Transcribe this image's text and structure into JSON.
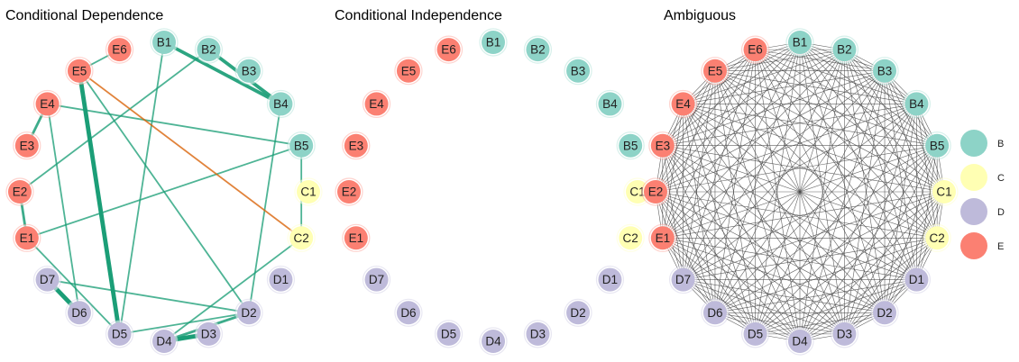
{
  "chart_data": [
    {
      "type": "network",
      "title": "Conditional Dependence",
      "edges": [
        {
          "from": "B1",
          "to": "B4",
          "weight": 3,
          "sign": "positive"
        },
        {
          "from": "B2",
          "to": "B4",
          "weight": 3,
          "sign": "positive"
        },
        {
          "from": "B2",
          "to": "E2",
          "weight": 1,
          "sign": "positive"
        },
        {
          "from": "B1",
          "to": "D5",
          "weight": 1,
          "sign": "positive"
        },
        {
          "from": "B4",
          "to": "D2",
          "weight": 1,
          "sign": "positive"
        },
        {
          "from": "B5",
          "to": "C2",
          "weight": 1,
          "sign": "positive"
        },
        {
          "from": "B5",
          "to": "E4",
          "weight": 1,
          "sign": "positive"
        },
        {
          "from": "B5",
          "to": "E1",
          "weight": 1,
          "sign": "positive"
        },
        {
          "from": "E5",
          "to": "C2",
          "weight": 1,
          "sign": "negative"
        },
        {
          "from": "E5",
          "to": "D5",
          "weight": 4,
          "sign": "positive"
        },
        {
          "from": "E5",
          "to": "D2",
          "weight": 1,
          "sign": "positive"
        },
        {
          "from": "E5",
          "to": "E6",
          "weight": 1,
          "sign": "positive"
        },
        {
          "from": "E4",
          "to": "E3",
          "weight": 2,
          "sign": "positive"
        },
        {
          "from": "E4",
          "to": "D6",
          "weight": 1,
          "sign": "positive"
        },
        {
          "from": "E2",
          "to": "E1",
          "weight": 2,
          "sign": "positive"
        },
        {
          "from": "E1",
          "to": "D5",
          "weight": 1,
          "sign": "positive"
        },
        {
          "from": "D7",
          "to": "D6",
          "weight": 4,
          "sign": "positive"
        },
        {
          "from": "D7",
          "to": "D2",
          "weight": 1,
          "sign": "positive"
        },
        {
          "from": "C2",
          "to": "D4",
          "weight": 1,
          "sign": "positive"
        },
        {
          "from": "D4",
          "to": "D3",
          "weight": 4,
          "sign": "positive"
        },
        {
          "from": "D5",
          "to": "D2",
          "weight": 1,
          "sign": "positive"
        },
        {
          "from": "D4",
          "to": "D2",
          "weight": 2,
          "sign": "positive"
        }
      ]
    },
    {
      "type": "network",
      "title": "Conditional Independence",
      "edges": []
    },
    {
      "type": "network",
      "title": "Ambiguous",
      "edges": "all-pairs"
    }
  ],
  "nodes": [
    "B1",
    "B2",
    "B3",
    "B4",
    "B5",
    "C1",
    "C2",
    "D1",
    "D2",
    "D3",
    "D4",
    "D5",
    "D6",
    "D7",
    "E1",
    "E2",
    "E3",
    "E4",
    "E5",
    "E6"
  ],
  "groups": {
    "B": {
      "color": "#8dd3c7"
    },
    "C": {
      "color": "#ffffb3"
    },
    "D": {
      "color": "#bebada"
    },
    "E": {
      "color": "#fb8072"
    }
  },
  "legend": [
    {
      "label": "B",
      "color": "#8dd3c7"
    },
    {
      "label": "C",
      "color": "#ffffb3"
    },
    {
      "label": "D",
      "color": "#bebada"
    },
    {
      "label": "E",
      "color": "#fb8072"
    }
  ],
  "edge_colors": {
    "positive": "#1b9e77",
    "negative": "#d95f02",
    "ambiguous": "#444444"
  }
}
